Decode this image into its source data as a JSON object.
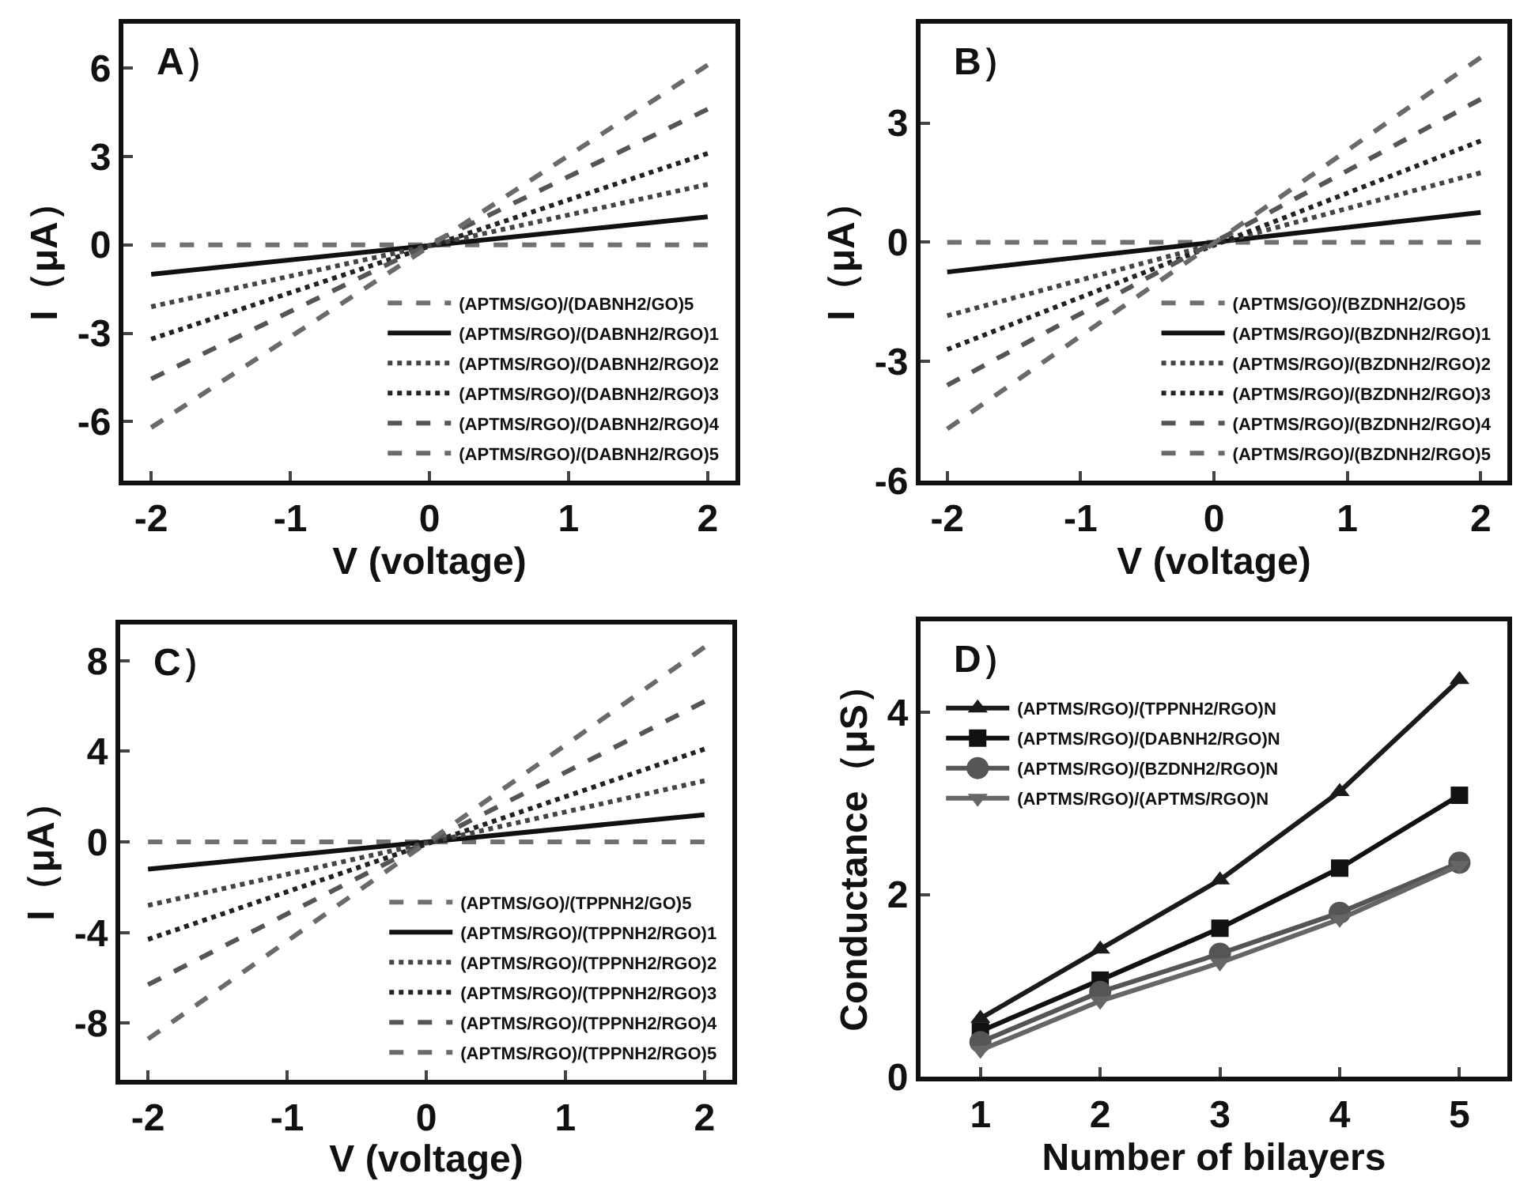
{
  "chart_data": [
    {
      "type": "line",
      "annotations": [
        "A）"
      ],
      "xlabel": "V (voltage)",
      "ylabel": "I（μA）",
      "x": [
        -2,
        2
      ],
      "xlim": [
        -2.2,
        2.2
      ],
      "xticks": [
        -2,
        -1,
        0,
        1,
        2
      ],
      "ylim": [
        -8,
        7.5
      ],
      "yticks": [
        -6,
        -3,
        0,
        3,
        6
      ],
      "grid": false,
      "legend": "bottom right",
      "marker": "none",
      "series": [
        {
          "name": "(APTMS/GO)/(DABNH2/GO)5",
          "color": "#707070",
          "line_style": "dashed",
          "values": [
            0,
            0
          ]
        },
        {
          "name": "(APTMS/RGO)/(DABNH2/RGO)1",
          "color": "#111111",
          "line_style": "solid",
          "values": [
            -1,
            0.95
          ]
        },
        {
          "name": "(APTMS/RGO)/(DABNH2/RGO)2",
          "color": "#444444",
          "line_style": "dotted",
          "values": [
            -2.1,
            2.05
          ]
        },
        {
          "name": "(APTMS/RGO)/(DABNH2/RGO)3",
          "color": "#222222",
          "line_style": "dotted",
          "values": [
            -3.2,
            3.1
          ]
        },
        {
          "name": "(APTMS/RGO)/(DABNH2/RGO)4",
          "color": "#555555",
          "line_style": "dashed",
          "values": [
            -4.55,
            4.6
          ]
        },
        {
          "name": "(APTMS/RGO)/(DABNH2/RGO)5",
          "color": "#6a6a6a",
          "line_style": "dashed",
          "values": [
            -6.2,
            6.1
          ]
        }
      ]
    },
    {
      "type": "line",
      "annotations": [
        "B）"
      ],
      "xlabel": "V (voltage)",
      "ylabel": "I（μA）",
      "x": [
        -2,
        2
      ],
      "xlim": [
        -2.2,
        2.2
      ],
      "xticks": [
        -2,
        -1,
        0,
        1,
        2
      ],
      "ylim": [
        -6,
        5.5
      ],
      "yticks": [
        -6,
        -3,
        0,
        3
      ],
      "grid": false,
      "legend": "bottom right",
      "marker": "none",
      "series": [
        {
          "name": "(APTMS/GO)/(BZDNH2/GO)5",
          "color": "#707070",
          "line_style": "dashed",
          "values": [
            0,
            0
          ]
        },
        {
          "name": "(APTMS/RGO)/(BZDNH2/RGO)1",
          "color": "#111111",
          "line_style": "solid",
          "values": [
            -0.75,
            0.75
          ]
        },
        {
          "name": "(APTMS/RGO)/(BZDNH2/RGO)2",
          "color": "#444444",
          "line_style": "dotted",
          "values": [
            -1.85,
            1.75
          ]
        },
        {
          "name": "(APTMS/RGO)/(BZDNH2/RGO)3",
          "color": "#222222",
          "line_style": "dotted",
          "values": [
            -2.7,
            2.55
          ]
        },
        {
          "name": "(APTMS/RGO)/(BZDNH2/RGO)4",
          "color": "#555555",
          "line_style": "dashed",
          "values": [
            -3.6,
            3.6
          ]
        },
        {
          "name": "(APTMS/RGO)/(BZDNH2/RGO)5",
          "color": "#6a6a6a",
          "line_style": "dashed",
          "values": [
            -4.7,
            4.65
          ]
        }
      ]
    },
    {
      "type": "line",
      "annotations": [
        "C）"
      ],
      "xlabel": "V (voltage)",
      "ylabel": "I（μA）",
      "x": [
        -2,
        2
      ],
      "xlim": [
        -2.2,
        2.2
      ],
      "xticks": [
        -2,
        -1,
        0,
        1,
        2
      ],
      "ylim": [
        -10.5,
        9.6
      ],
      "yticks": [
        -8,
        -4,
        0,
        4,
        8
      ],
      "grid": false,
      "legend": "bottom right",
      "marker": "none",
      "series": [
        {
          "name": "(APTMS/GO)/(TPPNH2/GO)5",
          "color": "#707070",
          "line_style": "dashed",
          "values": [
            0,
            0
          ]
        },
        {
          "name": "(APTMS/RGO)/(TPPNH2/RGO)1",
          "color": "#111111",
          "line_style": "solid",
          "values": [
            -1.2,
            1.2
          ]
        },
        {
          "name": "(APTMS/RGO)/(TPPNH2/RGO)2",
          "color": "#444444",
          "line_style": "dotted",
          "values": [
            -2.8,
            2.7
          ]
        },
        {
          "name": "(APTMS/RGO)/(TPPNH2/RGO)3",
          "color": "#222222",
          "line_style": "dotted",
          "values": [
            -4.3,
            4.1
          ]
        },
        {
          "name": "(APTMS/RGO)/(TPPNH2/RGO)4",
          "color": "#555555",
          "line_style": "dashed",
          "values": [
            -6.3,
            6.2
          ]
        },
        {
          "name": "(APTMS/RGO)/(TPPNH2/RGO)5",
          "color": "#6a6a6a",
          "line_style": "dashed",
          "values": [
            -8.7,
            8.6
          ]
        }
      ]
    },
    {
      "type": "line",
      "annotations": [
        "D）"
      ],
      "xlabel": "Number of bilayers",
      "ylabel": "Conductance（μS）",
      "x": [
        1,
        2,
        3,
        4,
        5
      ],
      "xlim": [
        0.5,
        5.4
      ],
      "xticks": [
        1,
        2,
        3,
        4,
        5
      ],
      "ylim": [
        0,
        5
      ],
      "yticks": [
        0,
        2,
        4
      ],
      "grid": false,
      "legend": "top left",
      "line_style": "solid",
      "series": [
        {
          "name": "(APTMS/RGO)/(TPPNH2/RGO)N",
          "color": "#1a1a1a",
          "marker": "triangle",
          "values": [
            0.64,
            1.4,
            2.16,
            3.13,
            4.36
          ]
        },
        {
          "name": "(APTMS/RGO)/(DABNH2/RGO)N",
          "color": "#111111",
          "marker": "square",
          "values": [
            0.5,
            1.06,
            1.63,
            2.29,
            3.09
          ]
        },
        {
          "name": "(APTMS/RGO)/(BZDNH2/RGO)N",
          "color": "#555555",
          "marker": "circle",
          "values": [
            0.38,
            0.93,
            1.35,
            1.8,
            2.35
          ]
        },
        {
          "name": "(APTMS/RGO)/(APTMS/RGO)N",
          "color": "#666666",
          "marker": "triangle-down",
          "values": [
            0.29,
            0.83,
            1.25,
            1.73,
            2.32
          ]
        }
      ]
    }
  ]
}
